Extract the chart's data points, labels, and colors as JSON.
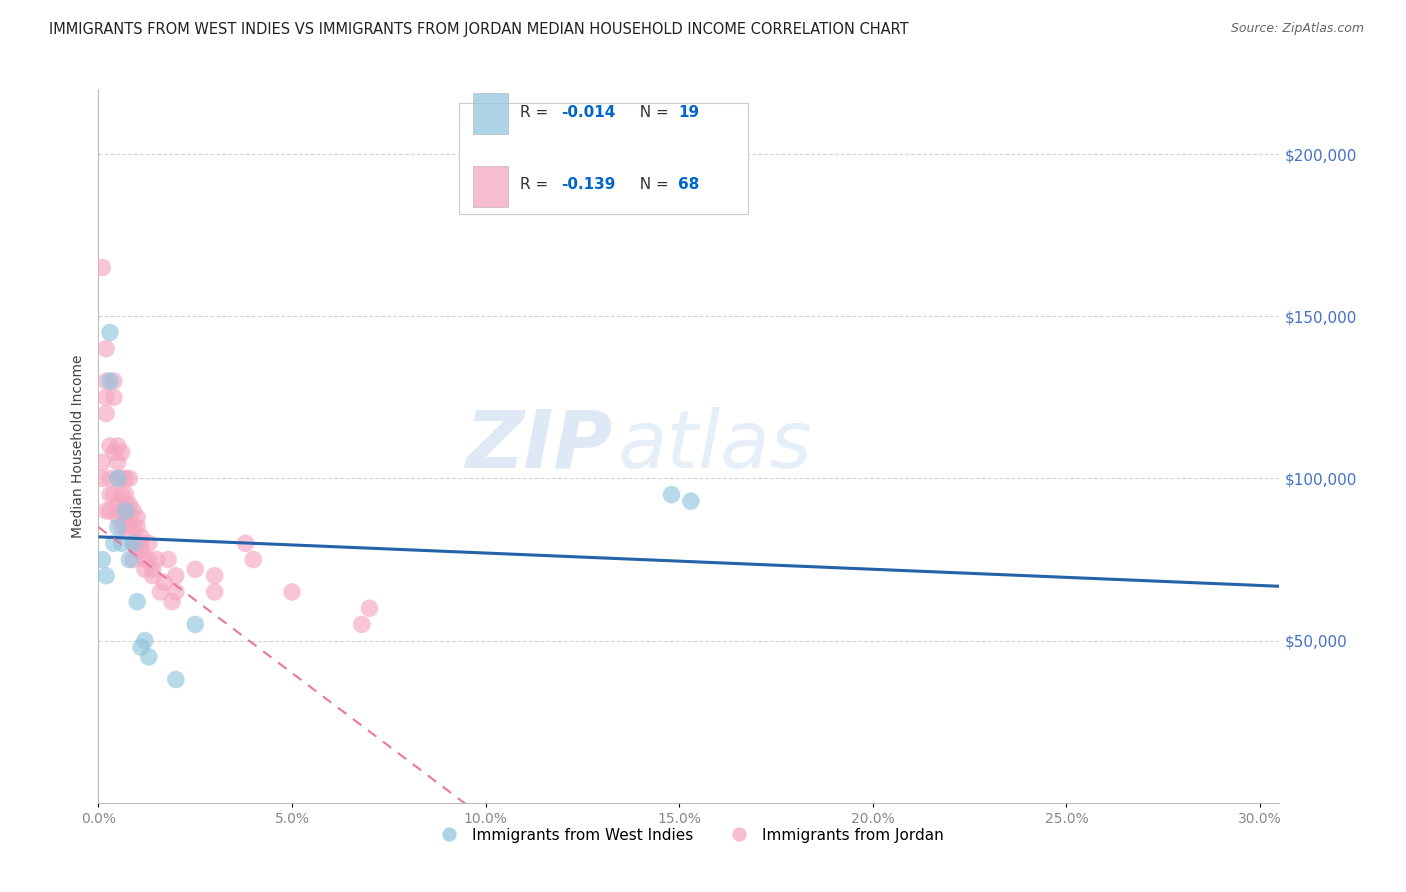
{
  "title": "IMMIGRANTS FROM WEST INDIES VS IMMIGRANTS FROM JORDAN MEDIAN HOUSEHOLD INCOME CORRELATION CHART",
  "source": "Source: ZipAtlas.com",
  "ylabel": "Median Household Income",
  "watermark_zip": "ZIP",
  "watermark_atlas": "atlas",
  "west_indies": {
    "label": "Immigrants from West Indies",
    "color": "#92c5de",
    "line_color": "#2563a8",
    "R": -0.014,
    "N": 19,
    "x": [
      0.001,
      0.002,
      0.003,
      0.003,
      0.004,
      0.005,
      0.005,
      0.006,
      0.007,
      0.008,
      0.009,
      0.01,
      0.011,
      0.012,
      0.013,
      0.148,
      0.153,
      0.02,
      0.025
    ],
    "y": [
      75000,
      70000,
      145000,
      130000,
      80000,
      100000,
      85000,
      80000,
      90000,
      75000,
      80000,
      62000,
      48000,
      50000,
      45000,
      95000,
      93000,
      38000,
      55000
    ]
  },
  "jordan": {
    "label": "Immigrants from Jordan",
    "color": "#f4a7c0",
    "line_color": "#e8789a",
    "R": -0.139,
    "N": 68,
    "x": [
      0.001,
      0.001,
      0.001,
      0.002,
      0.002,
      0.002,
      0.002,
      0.003,
      0.003,
      0.003,
      0.003,
      0.004,
      0.004,
      0.004,
      0.004,
      0.005,
      0.005,
      0.005,
      0.005,
      0.005,
      0.006,
      0.006,
      0.006,
      0.006,
      0.006,
      0.007,
      0.007,
      0.007,
      0.007,
      0.007,
      0.007,
      0.008,
      0.008,
      0.008,
      0.008,
      0.009,
      0.009,
      0.009,
      0.009,
      0.01,
      0.01,
      0.01,
      0.01,
      0.011,
      0.011,
      0.011,
      0.012,
      0.012,
      0.013,
      0.013,
      0.014,
      0.014,
      0.015,
      0.016,
      0.017,
      0.018,
      0.019,
      0.02,
      0.02,
      0.025,
      0.03,
      0.03,
      0.038,
      0.04,
      0.05,
      0.068,
      0.07,
      0.002
    ],
    "y": [
      100000,
      105000,
      165000,
      130000,
      125000,
      140000,
      90000,
      100000,
      110000,
      95000,
      90000,
      125000,
      130000,
      108000,
      95000,
      100000,
      110000,
      105000,
      88000,
      92000,
      100000,
      108000,
      90000,
      85000,
      95000,
      100000,
      95000,
      90000,
      88000,
      85000,
      92000,
      100000,
      88000,
      85000,
      92000,
      90000,
      85000,
      80000,
      75000,
      88000,
      80000,
      78000,
      85000,
      82000,
      80000,
      78000,
      75000,
      72000,
      75000,
      80000,
      72000,
      70000,
      75000,
      65000,
      68000,
      75000,
      62000,
      65000,
      70000,
      72000,
      70000,
      65000,
      80000,
      75000,
      65000,
      55000,
      60000,
      120000
    ]
  },
  "trend_wi": {
    "slope": -50000,
    "intercept": 82000
  },
  "trend_jo": {
    "slope": -900000,
    "intercept": 85000
  },
  "ylim": [
    0,
    220000
  ],
  "xlim": [
    0.0,
    0.305
  ],
  "yticks": [
    50000,
    100000,
    150000,
    200000
  ],
  "ytick_labels": [
    "$50,000",
    "$100,000",
    "$150,000",
    "$200,000"
  ],
  "xticks": [
    0.0,
    0.05,
    0.1,
    0.15,
    0.2,
    0.25,
    0.3
  ],
  "xtick_labels": [
    "0.0%",
    "5.0%",
    "10.0%",
    "15.0%",
    "20.0%",
    "25.0%",
    "30.0%"
  ],
  "background_color": "#ffffff",
  "grid_color": "#d0d0d0",
  "tick_label_color": "#4472c4"
}
